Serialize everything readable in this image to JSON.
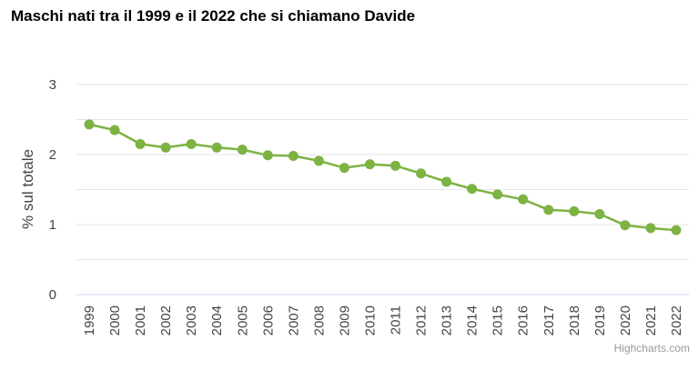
{
  "chart_data": {
    "type": "line",
    "title": "Maschi nati tra il 1999 e il 2022 che si chiamano Davide",
    "xlabel": "",
    "ylabel": "% sul totale",
    "ylim": [
      0,
      3
    ],
    "yticks": [
      "0",
      "1",
      "2",
      "3"
    ],
    "grid": true,
    "legend": "none",
    "x": [
      "1999",
      "2000",
      "2001",
      "2002",
      "2003",
      "2004",
      "2005",
      "2006",
      "2007",
      "2008",
      "2009",
      "2010",
      "2011",
      "2012",
      "2013",
      "2014",
      "2015",
      "2016",
      "2017",
      "2018",
      "2019",
      "2020",
      "2021",
      "2022"
    ],
    "series": [
      {
        "values": [
          2.43,
          2.35,
          2.15,
          2.1,
          2.15,
          2.1,
          2.07,
          1.99,
          1.98,
          1.91,
          1.81,
          1.86,
          1.84,
          1.73,
          1.61,
          1.51,
          1.43,
          1.36,
          1.21,
          1.19,
          1.15,
          0.99,
          0.95,
          0.92
        ]
      }
    ],
    "color": "#7cb342",
    "credit": "Highcharts.com"
  }
}
